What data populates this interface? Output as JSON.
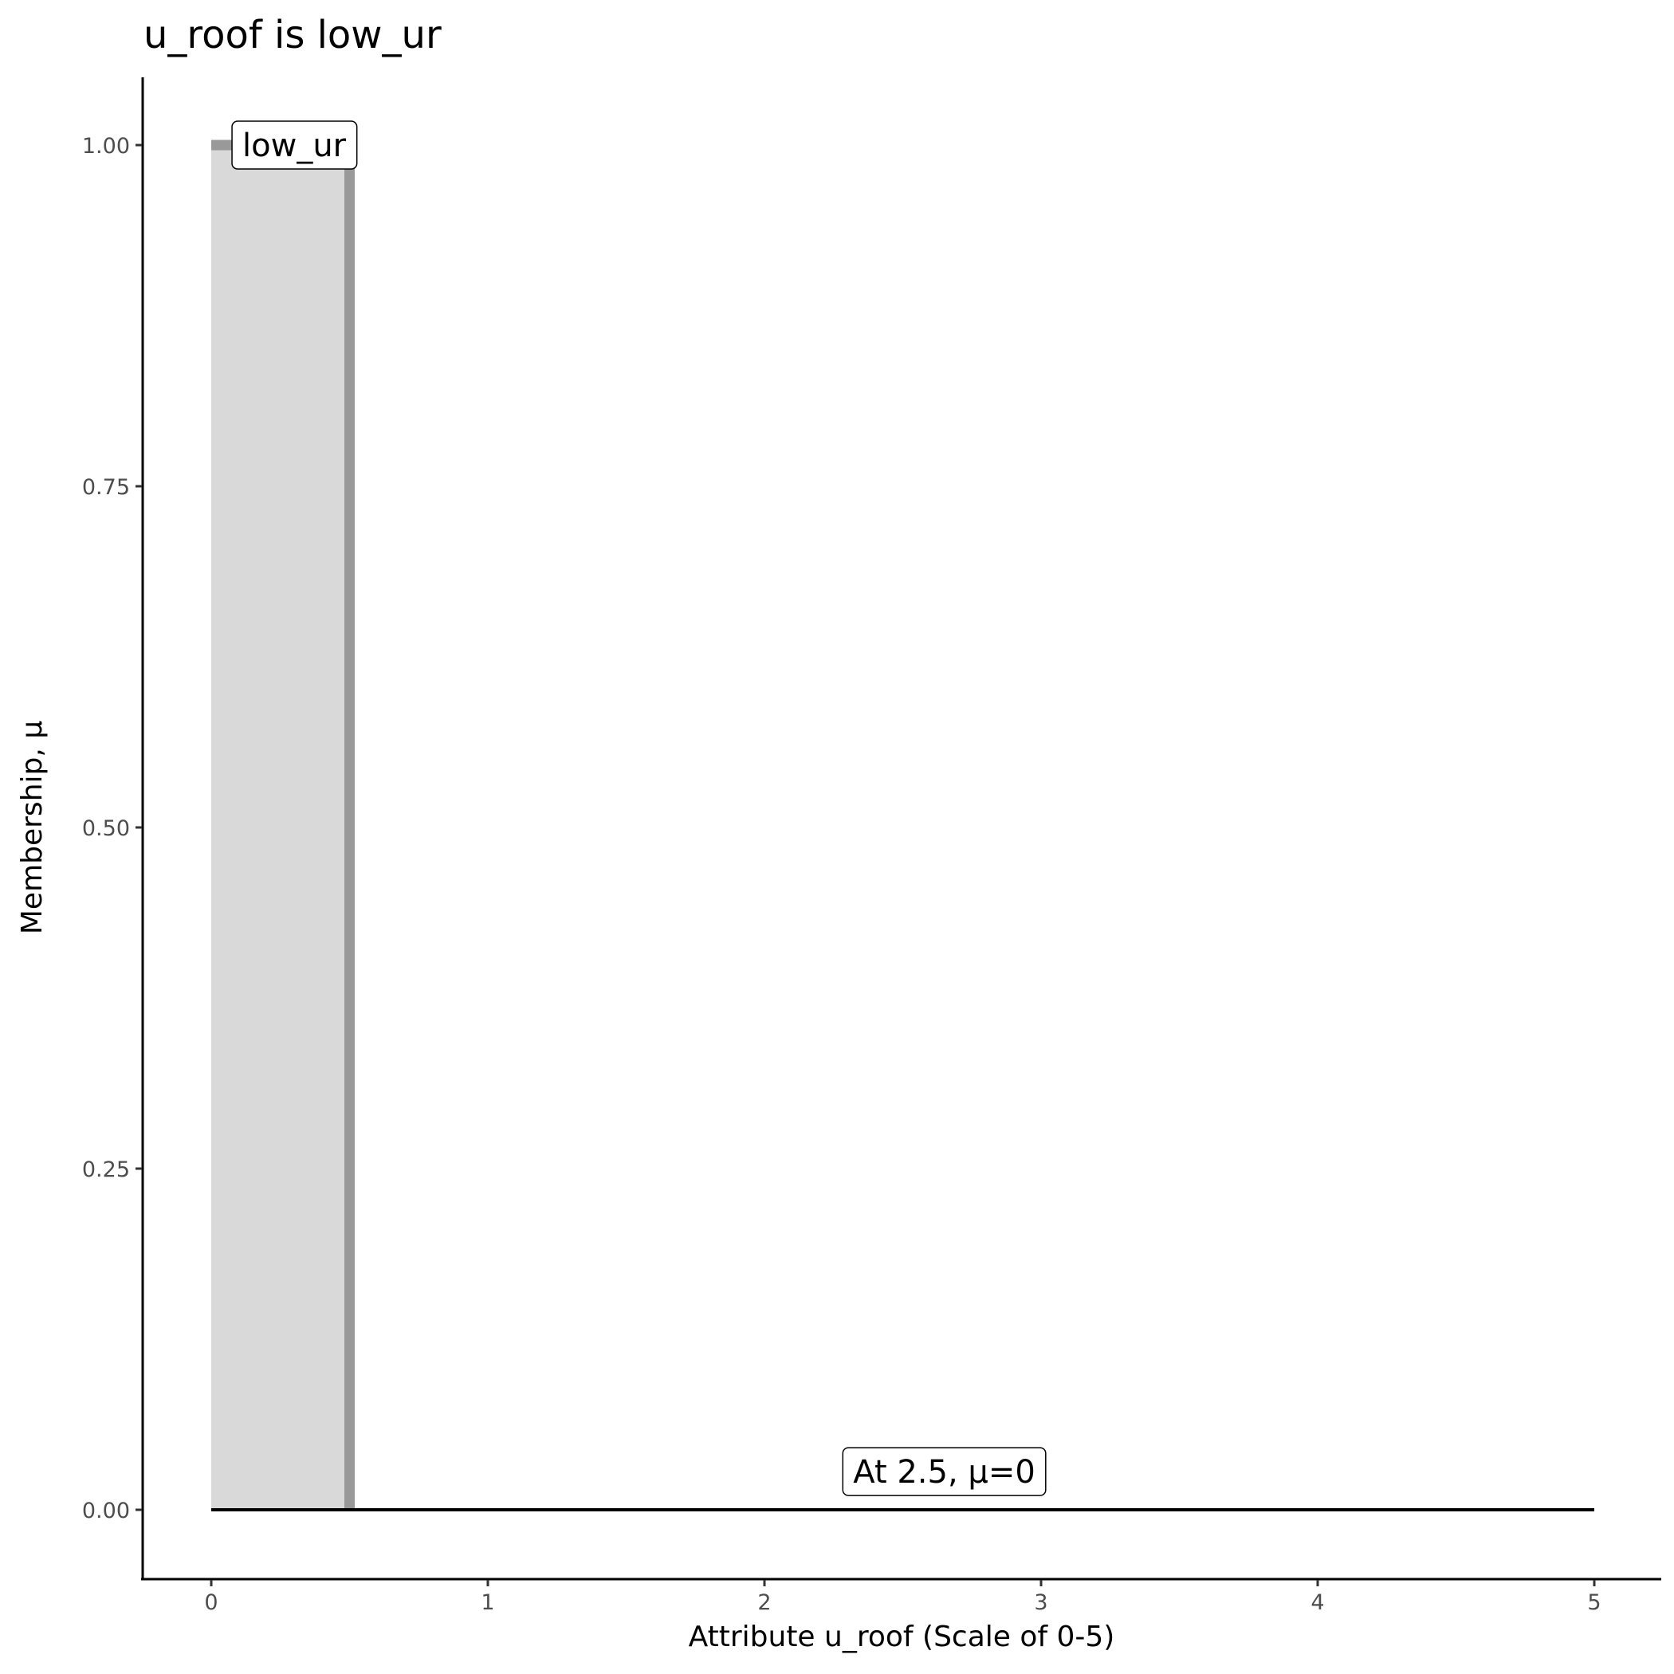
{
  "chart_data": {
    "type": "area",
    "title": "u_roof is low_ur",
    "xlabel": "Attribute u_roof (Scale of 0-5)",
    "ylabel": "Membership, μ",
    "xlim": [
      -0.25,
      5.25
    ],
    "ylim": [
      -0.05,
      1.05
    ],
    "x_ticks": [
      "0",
      "1",
      "2",
      "3",
      "4",
      "5"
    ],
    "y_ticks": [
      "0.00",
      "0.25",
      "0.50",
      "0.75",
      "1.00"
    ],
    "grid": false,
    "membership_function": {
      "name": "low_ur",
      "points": [
        [
          0,
          1
        ],
        [
          0.5,
          1
        ],
        [
          0.5,
          0
        ]
      ],
      "color": "#999999",
      "fill": "#d9d9d9"
    },
    "evaluation_line": {
      "x": [
        0,
        5
      ],
      "y": 0,
      "color": "#000000"
    },
    "annotations": [
      {
        "text": "low_ur",
        "x": 0.3,
        "y": 1.0
      },
      {
        "text": "At 2.5, μ=0",
        "x": 2.65,
        "y": 0.028
      }
    ]
  }
}
